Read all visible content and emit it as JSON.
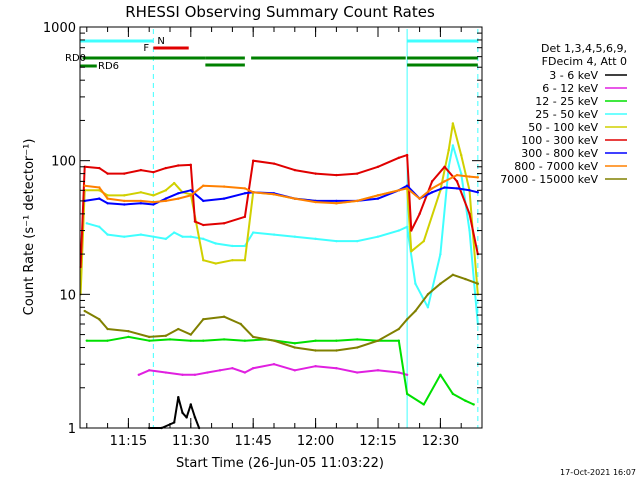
{
  "chart_data": {
    "type": "line",
    "title": "RHESSI Observing Summary Count Rates",
    "xlabel": "Start Time (26-Jun-05 11:03:22)",
    "ylabel": "Count Rate (s⁻¹ detector⁻¹)",
    "y_scale": "log",
    "ylim": [
      1,
      1000
    ],
    "xlim": [
      "11:03:22",
      "12:40:00"
    ],
    "x_ticks": [
      "11:15",
      "11:30",
      "11:45",
      "12:00",
      "12:15",
      "12:30"
    ],
    "y_ticks": [
      "1",
      "10",
      "100",
      "1000"
    ],
    "legend_header": [
      "Det 1,3,4,5,6,9,",
      "FDecim 4, Att 0"
    ],
    "legend_position": "right",
    "footer": "17-Oct-2021 16:07",
    "flags": {
      "N_label": "N",
      "F_label": "F",
      "RD0_label": "RD0",
      "RD6_label": "RD6",
      "N_segments": [
        [
          "11:03:22",
          "11:21:00"
        ],
        [
          "12:22:00",
          "12:39:00"
        ]
      ],
      "F_segments": [
        [
          "11:21:00",
          "11:29:30"
        ]
      ],
      "RD0_segments": [
        [
          "11:04:00",
          "11:33:30"
        ],
        [
          "11:33:30",
          "11:43:00"
        ],
        [
          "11:44:30",
          "12:21:40"
        ],
        [
          "12:22:00",
          "12:39:00"
        ]
      ],
      "RD6_segments": [
        [
          "11:03:22",
          "11:05:00"
        ]
      ]
    },
    "series": [
      {
        "name": "3 - 6 keV",
        "color": "#000000",
        "points": [
          [
            "11:20:00",
            1.0
          ],
          [
            "11:23:00",
            1.0
          ],
          [
            "11:26:00",
            1.1
          ],
          [
            "11:27:00",
            1.7
          ],
          [
            "11:28:00",
            1.3
          ],
          [
            "11:29:00",
            1.2
          ],
          [
            "11:30:00",
            1.5
          ],
          [
            "11:31:00",
            1.2
          ],
          [
            "11:32:00",
            1.0
          ]
        ]
      },
      {
        "name": "6 - 12 keV",
        "color": "#e020e0",
        "points": [
          [
            "11:17:30",
            2.5
          ],
          [
            "11:20:00",
            2.7
          ],
          [
            "11:24:00",
            2.6
          ],
          [
            "11:28:00",
            2.5
          ],
          [
            "11:31:00",
            2.5
          ],
          [
            "11:34:00",
            2.6
          ],
          [
            "11:37:00",
            2.7
          ],
          [
            "11:40:00",
            2.8
          ],
          [
            "11:43:00",
            2.6
          ],
          [
            "11:45:00",
            2.8
          ],
          [
            "11:50:00",
            3.0
          ],
          [
            "11:55:00",
            2.7
          ],
          [
            "12:00:00",
            2.9
          ],
          [
            "12:05:00",
            2.8
          ],
          [
            "12:10:00",
            2.6
          ],
          [
            "12:15:00",
            2.7
          ],
          [
            "12:20:00",
            2.6
          ],
          [
            "12:22:00",
            2.5
          ]
        ]
      },
      {
        "name": "12 - 25 keV",
        "color": "#00e000",
        "points": [
          [
            "11:05:00",
            4.5
          ],
          [
            "11:10:00",
            4.5
          ],
          [
            "11:15:00",
            4.8
          ],
          [
            "11:20:00",
            4.5
          ],
          [
            "11:25:00",
            4.6
          ],
          [
            "11:30:00",
            4.5
          ],
          [
            "11:33:00",
            4.5
          ],
          [
            "11:38:00",
            4.6
          ],
          [
            "11:43:00",
            4.5
          ],
          [
            "11:48:00",
            4.6
          ],
          [
            "11:55:00",
            4.3
          ],
          [
            "12:00:00",
            4.5
          ],
          [
            "12:05:00",
            4.5
          ],
          [
            "12:10:00",
            4.6
          ],
          [
            "12:15:00",
            4.5
          ],
          [
            "12:20:00",
            4.5
          ],
          [
            "12:22:00",
            1.8
          ],
          [
            "12:26:00",
            1.5
          ],
          [
            "12:30:00",
            2.5
          ],
          [
            "12:33:00",
            1.8
          ],
          [
            "12:36:00",
            1.6
          ],
          [
            "12:38:00",
            1.5
          ]
        ]
      },
      {
        "name": "25 - 50 keV",
        "color": "#40ffff",
        "points": [
          [
            "11:05:00",
            34
          ],
          [
            "11:08:00",
            32
          ],
          [
            "11:10:00",
            28
          ],
          [
            "11:14:00",
            27
          ],
          [
            "11:18:00",
            28
          ],
          [
            "11:21:00",
            27
          ],
          [
            "11:24:00",
            26
          ],
          [
            "11:26:00",
            29
          ],
          [
            "11:28:00",
            27
          ],
          [
            "11:30:00",
            27
          ],
          [
            "11:33:00",
            26
          ],
          [
            "11:36:00",
            24
          ],
          [
            "11:40:00",
            23
          ],
          [
            "11:43:00",
            23
          ],
          [
            "11:45:00",
            29
          ],
          [
            "11:50:00",
            28
          ],
          [
            "11:55:00",
            27
          ],
          [
            "12:00:00",
            26
          ],
          [
            "12:05:00",
            25
          ],
          [
            "12:10:00",
            25
          ],
          [
            "12:15:00",
            27
          ],
          [
            "12:20:00",
            30
          ],
          [
            "12:22:00",
            32
          ],
          [
            "12:24:00",
            12
          ],
          [
            "12:27:00",
            8
          ],
          [
            "12:30:00",
            20
          ],
          [
            "12:32:00",
            90
          ],
          [
            "12:33:00",
            130
          ],
          [
            "12:35:00",
            80
          ],
          [
            "12:37:00",
            30
          ],
          [
            "12:39:00",
            6
          ]
        ]
      },
      {
        "name": "50 - 100 keV",
        "color": "#d0d000",
        "points": [
          [
            "11:03:30",
            10
          ],
          [
            "11:04:30",
            60
          ],
          [
            "11:08:00",
            60
          ],
          [
            "11:10:00",
            55
          ],
          [
            "11:14:00",
            55
          ],
          [
            "11:18:00",
            58
          ],
          [
            "11:21:00",
            55
          ],
          [
            "11:24:00",
            60
          ],
          [
            "11:26:00",
            68
          ],
          [
            "11:28:00",
            58
          ],
          [
            "11:30:00",
            56
          ],
          [
            "11:33:00",
            18
          ],
          [
            "11:36:00",
            17
          ],
          [
            "11:40:00",
            18
          ],
          [
            "11:43:00",
            18
          ],
          [
            "11:45:00",
            58
          ],
          [
            "11:50:00",
            56
          ],
          [
            "11:55:00",
            52
          ],
          [
            "12:00:00",
            50
          ],
          [
            "12:05:00",
            48
          ],
          [
            "12:10:00",
            50
          ],
          [
            "12:15:00",
            55
          ],
          [
            "12:20:00",
            60
          ],
          [
            "12:22:00",
            63
          ],
          [
            "12:23:00",
            21
          ],
          [
            "12:26:00",
            25
          ],
          [
            "12:30:00",
            60
          ],
          [
            "12:32:00",
            120
          ],
          [
            "12:33:00",
            190
          ],
          [
            "12:35:00",
            110
          ],
          [
            "12:37:00",
            60
          ],
          [
            "12:39:00",
            10
          ]
        ]
      },
      {
        "name": "100 - 300 keV",
        "color": "#e00000",
        "points": [
          [
            "11:03:30",
            16
          ],
          [
            "11:04:30",
            90
          ],
          [
            "11:08:00",
            88
          ],
          [
            "11:10:00",
            80
          ],
          [
            "11:14:00",
            80
          ],
          [
            "11:18:00",
            85
          ],
          [
            "11:21:00",
            82
          ],
          [
            "11:24:00",
            88
          ],
          [
            "11:27:00",
            92
          ],
          [
            "11:30:00",
            93
          ],
          [
            "11:31:00",
            35
          ],
          [
            "11:33:00",
            33
          ],
          [
            "11:38:00",
            34
          ],
          [
            "11:43:00",
            38
          ],
          [
            "11:45:00",
            100
          ],
          [
            "11:50:00",
            95
          ],
          [
            "11:55:00",
            85
          ],
          [
            "12:00:00",
            80
          ],
          [
            "12:05:00",
            78
          ],
          [
            "12:10:00",
            80
          ],
          [
            "12:15:00",
            90
          ],
          [
            "12:20:00",
            105
          ],
          [
            "12:22:00",
            110
          ],
          [
            "12:23:00",
            30
          ],
          [
            "12:25:00",
            40
          ],
          [
            "12:28:00",
            70
          ],
          [
            "12:31:00",
            90
          ],
          [
            "12:34:00",
            70
          ],
          [
            "12:37:00",
            40
          ],
          [
            "12:39:00",
            20
          ]
        ]
      },
      {
        "name": "300 - 800 keV",
        "color": "#0000ff",
        "points": [
          [
            "11:04:30",
            50
          ],
          [
            "11:08:00",
            52
          ],
          [
            "11:10:00",
            48
          ],
          [
            "11:14:00",
            47
          ],
          [
            "11:18:00",
            48
          ],
          [
            "11:21:00",
            47
          ],
          [
            "11:24:00",
            52
          ],
          [
            "11:27:00",
            57
          ],
          [
            "11:30:00",
            60
          ],
          [
            "11:33:00",
            50
          ],
          [
            "11:38:00",
            52
          ],
          [
            "11:43:00",
            57
          ],
          [
            "11:45:00",
            58
          ],
          [
            "11:50:00",
            57
          ],
          [
            "11:55:00",
            52
          ],
          [
            "12:00:00",
            50
          ],
          [
            "12:05:00",
            50
          ],
          [
            "12:10:00",
            50
          ],
          [
            "12:15:00",
            52
          ],
          [
            "12:20:00",
            60
          ],
          [
            "12:22:00",
            65
          ],
          [
            "12:25:00",
            52
          ],
          [
            "12:28:00",
            58
          ],
          [
            "12:31:00",
            63
          ],
          [
            "12:34:00",
            62
          ],
          [
            "12:37:00",
            60
          ],
          [
            "12:39:00",
            58
          ]
        ]
      },
      {
        "name": "800 - 7000 keV",
        "color": "#ff8000",
        "points": [
          [
            "11:04:30",
            65
          ],
          [
            "11:08:00",
            63
          ],
          [
            "11:10:00",
            52
          ],
          [
            "11:14:00",
            50
          ],
          [
            "11:18:00",
            50
          ],
          [
            "11:21:00",
            49
          ],
          [
            "11:24:00",
            50
          ],
          [
            "11:27:00",
            52
          ],
          [
            "11:30:00",
            55
          ],
          [
            "11:33:00",
            65
          ],
          [
            "11:38:00",
            64
          ],
          [
            "11:43:00",
            62
          ],
          [
            "11:45:00",
            58
          ],
          [
            "11:50:00",
            56
          ],
          [
            "11:55:00",
            52
          ],
          [
            "12:00:00",
            49
          ],
          [
            "12:05:00",
            48
          ],
          [
            "12:10:00",
            50
          ],
          [
            "12:15:00",
            55
          ],
          [
            "12:20:00",
            60
          ],
          [
            "12:22:00",
            62
          ],
          [
            "12:25:00",
            52
          ],
          [
            "12:28:00",
            62
          ],
          [
            "12:31:00",
            70
          ],
          [
            "12:34:00",
            78
          ],
          [
            "12:37:00",
            76
          ],
          [
            "12:39:00",
            75
          ]
        ]
      },
      {
        "name": "7000 - 15000 keV",
        "color": "#808000",
        "points": [
          [
            "11:04:30",
            7.5
          ],
          [
            "11:08:00",
            6.5
          ],
          [
            "11:10:00",
            5.5
          ],
          [
            "11:15:00",
            5.3
          ],
          [
            "11:20:00",
            4.8
          ],
          [
            "11:24:00",
            4.9
          ],
          [
            "11:27:00",
            5.5
          ],
          [
            "11:30:00",
            5.0
          ],
          [
            "11:33:00",
            6.5
          ],
          [
            "11:38:00",
            6.8
          ],
          [
            "11:42:00",
            6.0
          ],
          [
            "11:45:00",
            4.8
          ],
          [
            "11:50:00",
            4.5
          ],
          [
            "11:55:00",
            4.0
          ],
          [
            "12:00:00",
            3.8
          ],
          [
            "12:05:00",
            3.8
          ],
          [
            "12:10:00",
            4.0
          ],
          [
            "12:15:00",
            4.5
          ],
          [
            "12:20:00",
            5.5
          ],
          [
            "12:22:00",
            6.5
          ],
          [
            "12:24:00",
            7.5
          ],
          [
            "12:27:00",
            10
          ],
          [
            "12:30:00",
            12
          ],
          [
            "12:33:00",
            14
          ],
          [
            "12:36:00",
            13
          ],
          [
            "12:39:00",
            12
          ]
        ]
      }
    ]
  }
}
